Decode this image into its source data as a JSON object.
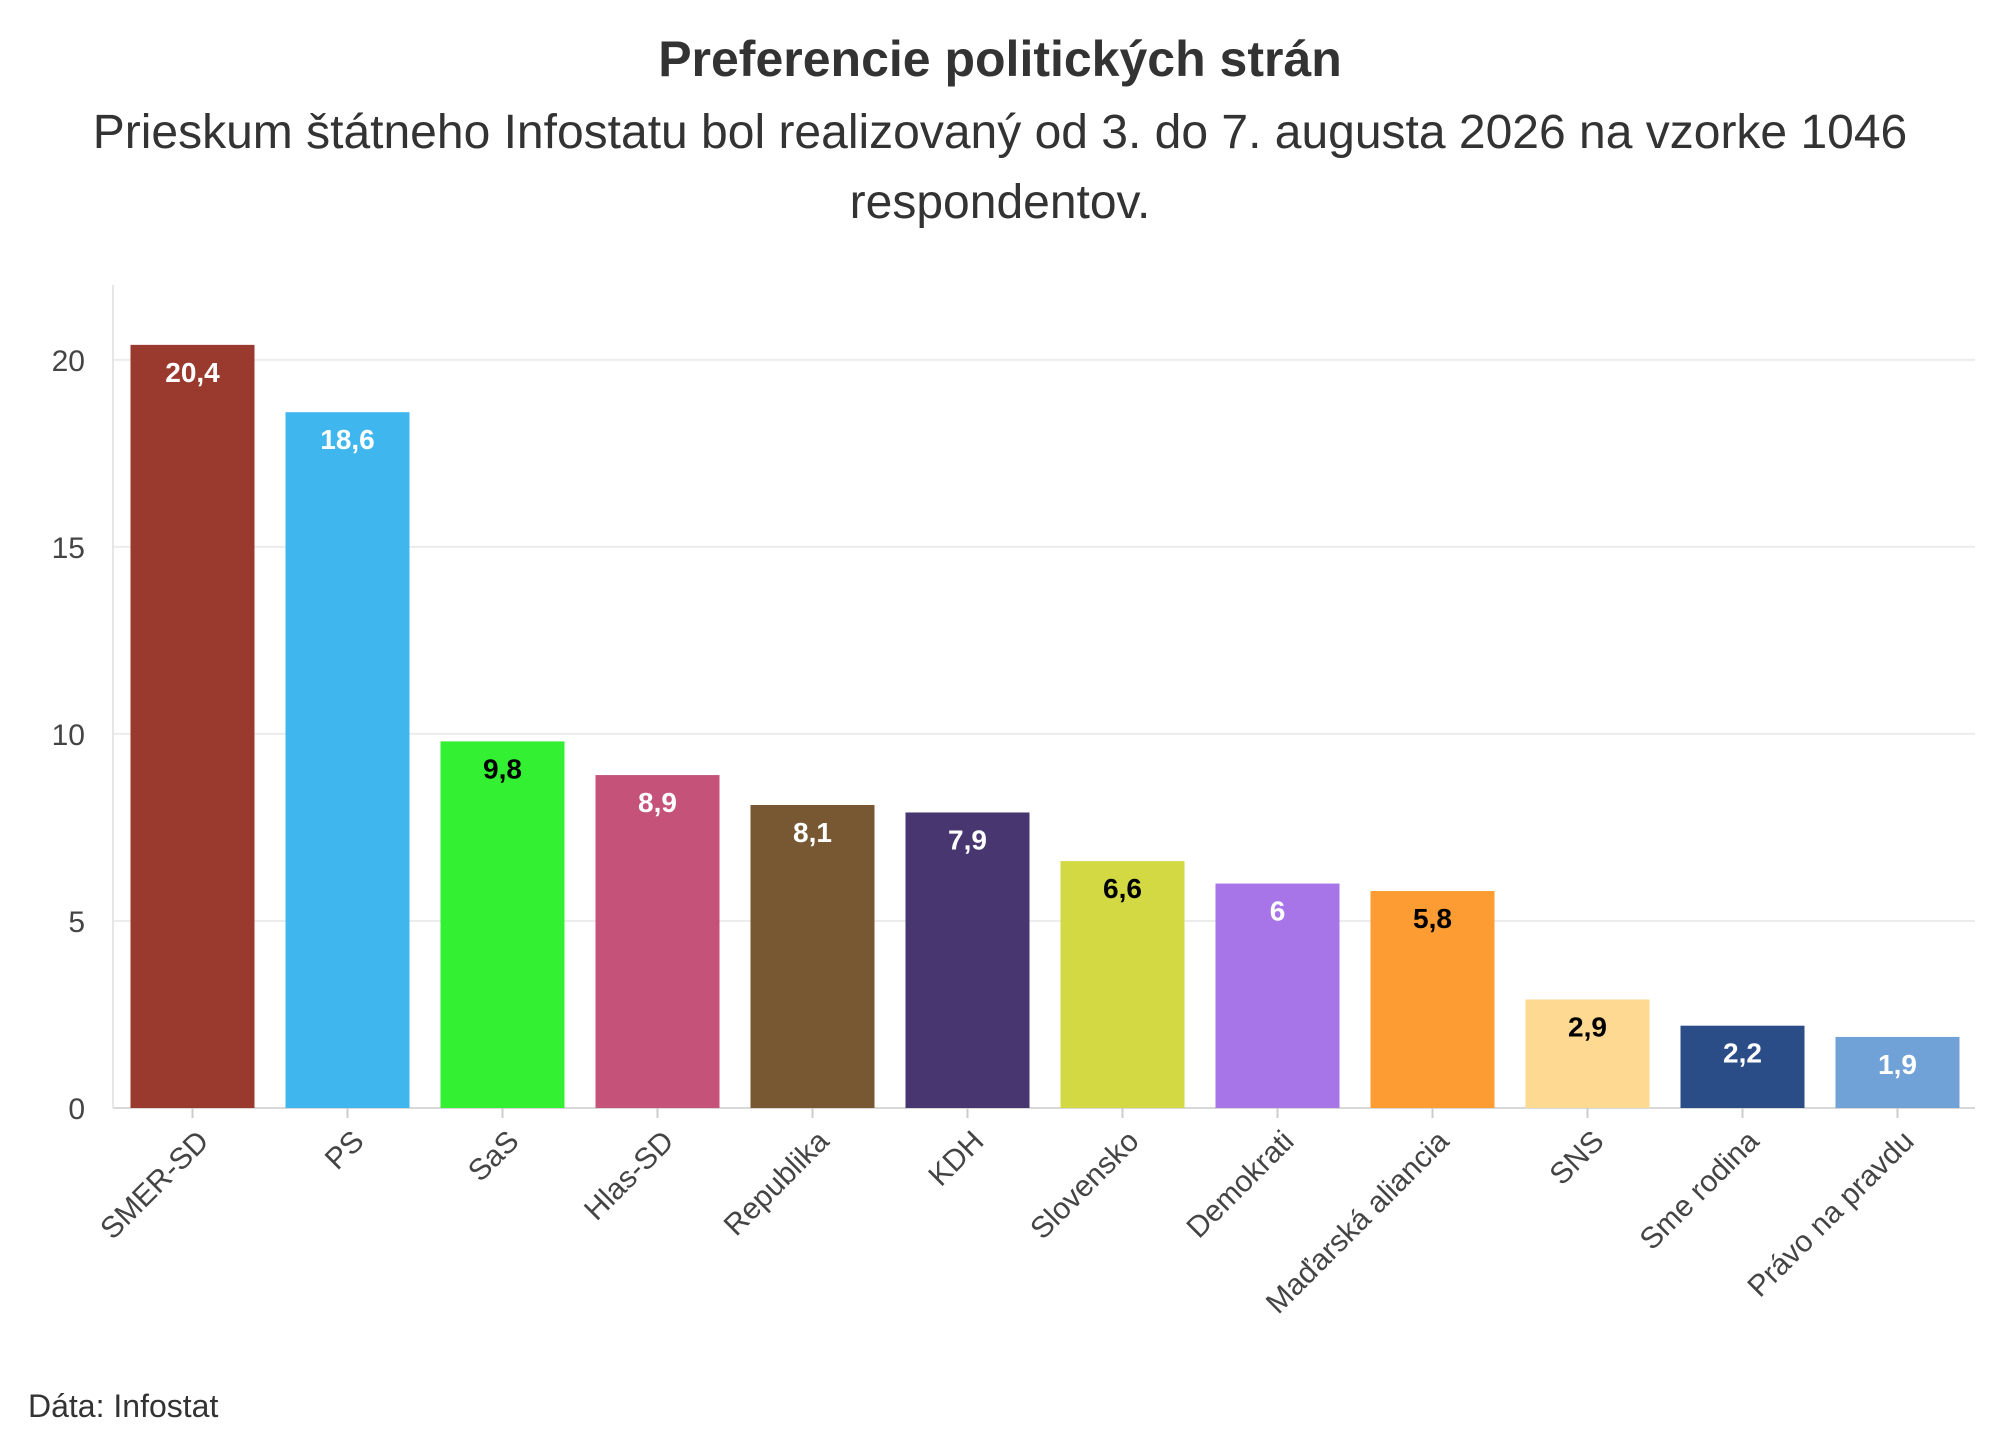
{
  "chart_data": {
    "type": "bar",
    "title": "Preferencie politických strán",
    "subtitle": "Prieskum štátneho Infostatu bol realizovaný od 3. do 7. augusta 2026 na vzorke 1046 respondentov.",
    "xlabel": "",
    "ylabel": "",
    "ylim": [
      0,
      22
    ],
    "yticks": [
      0,
      5,
      10,
      15,
      20
    ],
    "grid": true,
    "categories": [
      "SMER-SD",
      "PS",
      "SaS",
      "Hlas-SD",
      "Republika",
      "KDH",
      "Slovensko",
      "Demokrati",
      "Maďarská aliancia",
      "SNS",
      "Sme rodina",
      "Právo na pravdu"
    ],
    "values": [
      20.4,
      18.6,
      9.8,
      8.9,
      8.1,
      7.9,
      6.6,
      6,
      5.8,
      2.9,
      2.2,
      1.9
    ],
    "value_labels": [
      "20,4",
      "18,6",
      "9,8",
      "8,9",
      "8,1",
      "7,9",
      "6,6",
      "6",
      "5,8",
      "2,9",
      "2,2",
      "1,9"
    ],
    "colors": [
      "#9a3a2e",
      "#3fb6ee",
      "#33f033",
      "#c55279",
      "#775833",
      "#483671",
      "#d2d943",
      "#a875e9",
      "#fd9c33",
      "#fdd991",
      "#2a4d87",
      "#70a2d7"
    ],
    "label_colors": [
      "#ffffff",
      "#ffffff",
      "#000000",
      "#ffffff",
      "#ffffff",
      "#ffffff",
      "#000000",
      "#ffffff",
      "#000000",
      "#000000",
      "#ffffff",
      "#ffffff"
    ]
  },
  "source": "Dáta: Infostat"
}
